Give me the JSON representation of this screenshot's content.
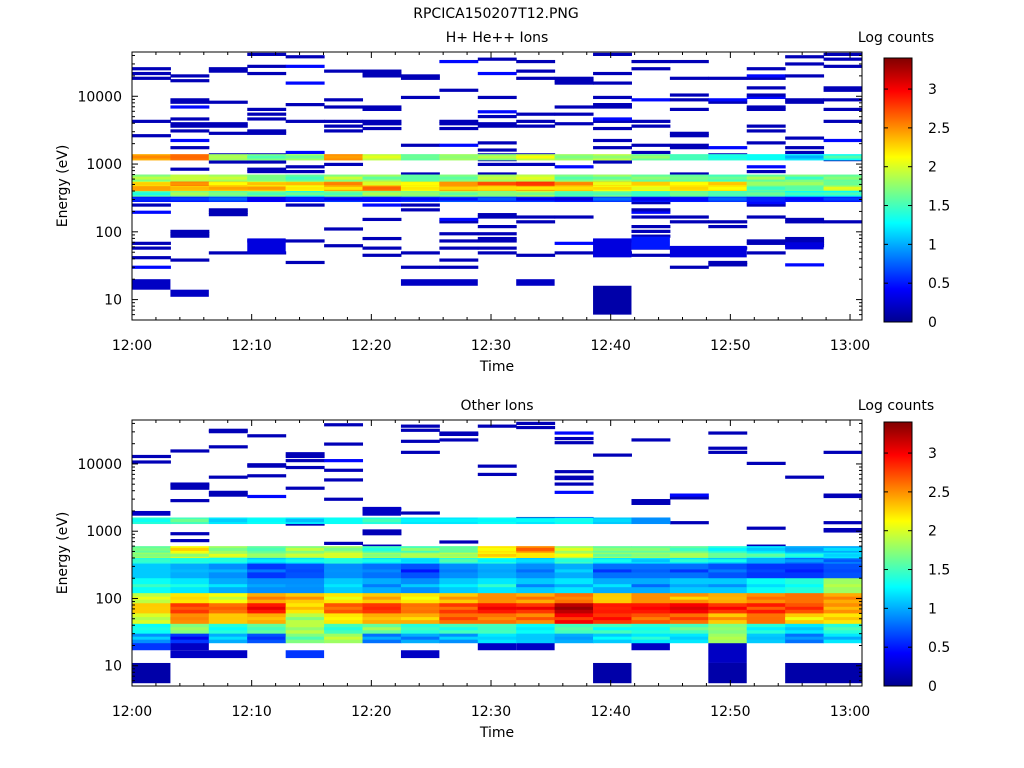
{
  "figure_title": "RPCICA150207T12.PNG",
  "colorbar": {
    "label": "Log counts",
    "range": [
      0,
      3.4
    ],
    "ticks": [
      0,
      0.5,
      1,
      1.5,
      2,
      2.5,
      3
    ],
    "tick_labels": [
      "0",
      "0.5",
      "1",
      "1.5",
      "2",
      "2.5",
      "3"
    ],
    "colormap": "jet"
  },
  "chart_data": [
    {
      "type": "heatmap",
      "title": "H+ He++ Ions",
      "xlabel": "Time",
      "ylabel": "Energy (eV)",
      "yscale": "log",
      "ylim": [
        5,
        45000
      ],
      "x_ticks": [
        "12:00",
        "12:10",
        "12:20",
        "12:30",
        "12:40",
        "12:50",
        "13:00"
      ],
      "y_ticks": [
        10,
        100,
        1000,
        10000
      ],
      "y_tick_labels": [
        "10",
        "100",
        "1000",
        "10000"
      ],
      "time_bins": 19,
      "bands": [
        {
          "elo": 1150,
          "ehi": 1400,
          "values": [
            2.4,
            2.6,
            1.8,
            1.7,
            1.8,
            2.5,
            1.9,
            1.6,
            1.8,
            1.7,
            1.9,
            1.8,
            1.9,
            1.6,
            1.5,
            1.4,
            1.3,
            1.2,
            1.3
          ]
        },
        {
          "elo": 550,
          "ehi": 700,
          "values": [
            1.7,
            1.9,
            1.8,
            1.7,
            1.6,
            1.7,
            1.8,
            1.6,
            1.7,
            1.8,
            1.9,
            1.7,
            1.8,
            1.6,
            1.6,
            1.5,
            1.6,
            1.7,
            1.6
          ]
        },
        {
          "elo": 480,
          "ehi": 550,
          "values": [
            2.1,
            2.7,
            2.3,
            2.1,
            2.2,
            2.4,
            2.2,
            2.2,
            2.5,
            2.6,
            2.9,
            2.4,
            2.3,
            2.3,
            2.2,
            2.2,
            1.8,
            1.7,
            1.7
          ]
        },
        {
          "elo": 400,
          "ehi": 480,
          "values": [
            2.4,
            2.3,
            2.3,
            2.3,
            2.1,
            2.4,
            2.5,
            2.1,
            2.4,
            2.3,
            2.4,
            2.3,
            2.1,
            2.1,
            2.2,
            2.2,
            1.6,
            1.6,
            1.8
          ]
        },
        {
          "elo": 330,
          "ehi": 400,
          "values": [
            1.6,
            1.7,
            1.6,
            1.7,
            1.4,
            1.7,
            1.7,
            1.7,
            1.8,
            1.7,
            1.9,
            1.6,
            1.7,
            1.5,
            1.6,
            1.5,
            1.5,
            1.3,
            1.3
          ]
        },
        {
          "elo": 280,
          "ehi": 330,
          "values": [
            0.5,
            0.5,
            0.6,
            0.4,
            0.5,
            0.6,
            0.5,
            0.6,
            0.7,
            0.6,
            0.6,
            0.5,
            0.6,
            0.5,
            0.5,
            0.6,
            0.5,
            0.5,
            0.5
          ]
        }
      ],
      "sparse_blocks": [
        {
          "t0": 0,
          "t1": 1,
          "elo": 14,
          "ehi": 20,
          "v": 0.2
        },
        {
          "t0": 1,
          "t1": 2,
          "elo": 11,
          "ehi": 14,
          "v": 0.2
        },
        {
          "t0": 7,
          "t1": 9,
          "elo": 16,
          "ehi": 20,
          "v": 0.2
        },
        {
          "t0": 10,
          "t1": 11,
          "elo": 16,
          "ehi": 20,
          "v": 0.2
        },
        {
          "t0": 12,
          "t1": 13,
          "elo": 6,
          "ehi": 16,
          "v": 0.1
        },
        {
          "t0": 3,
          "t1": 4,
          "elo": 48,
          "ehi": 80,
          "v": 0.3
        },
        {
          "t0": 12,
          "t1": 13,
          "elo": 42,
          "ehi": 80,
          "v": 0.3
        },
        {
          "t0": 13,
          "t1": 14,
          "elo": 55,
          "ehi": 85,
          "v": 0.5
        },
        {
          "t0": 14,
          "t1": 16,
          "elo": 42,
          "ehi": 62,
          "v": 0.3
        },
        {
          "t0": 17,
          "t1": 18,
          "elo": 55,
          "ehi": 70,
          "v": 0.3
        }
      ],
      "sparse_lines": {
        "elo": 30,
        "ehi": 45000,
        "value": 0.15,
        "density": 0.17
      }
    },
    {
      "type": "heatmap",
      "title": "Other Ions",
      "xlabel": "Time",
      "ylabel": "Energy (eV)",
      "yscale": "log",
      "ylim": [
        5,
        45000
      ],
      "x_ticks": [
        "12:00",
        "12:10",
        "12:20",
        "12:30",
        "12:40",
        "12:50",
        "13:00"
      ],
      "y_ticks": [
        10,
        100,
        1000,
        10000
      ],
      "y_tick_labels": [
        "10",
        "100",
        "1000",
        "10000"
      ],
      "time_bins": 19,
      "bands": [
        {
          "elo": 1300,
          "ehi": 1600,
          "values": [
            1.4,
            1.5,
            1.2,
            1.3,
            1.2,
            1.3,
            1.4,
            1.2,
            1.2,
            1.3,
            1.2,
            1.3,
            1.1,
            0.9,
            0.0,
            0.0,
            0.0,
            0.0,
            0.0
          ]
        },
        {
          "elo": 480,
          "ehi": 600,
          "values": [
            1.6,
            2.1,
            1.8,
            1.6,
            1.7,
            1.8,
            1.5,
            1.5,
            1.6,
            2.2,
            2.5,
            1.8,
            1.6,
            1.6,
            1.6,
            1.4,
            1.2,
            1.0,
            1.0
          ]
        },
        {
          "elo": 400,
          "ehi": 480,
          "values": [
            1.8,
            2.0,
            1.8,
            1.7,
            1.8,
            2.0,
            1.8,
            1.8,
            1.9,
            2.1,
            2.2,
            1.9,
            1.8,
            1.8,
            1.8,
            1.6,
            1.4,
            1.2,
            1.2
          ]
        },
        {
          "elo": 330,
          "ehi": 400,
          "values": [
            1.4,
            1.4,
            1.3,
            1.1,
            1.2,
            1.4,
            1.2,
            1.2,
            1.4,
            1.4,
            1.1,
            1.5,
            1.2,
            1.2,
            1.2,
            1.1,
            1.0,
            0.8,
            0.9
          ]
        },
        {
          "elo": 200,
          "ehi": 330,
          "values": [
            1.1,
            1.0,
            0.9,
            0.6,
            0.7,
            0.9,
            0.8,
            0.7,
            0.9,
            1.0,
            0.9,
            1.0,
            0.8,
            0.8,
            0.8,
            0.7,
            0.6,
            0.6,
            0.7
          ]
        },
        {
          "elo": 120,
          "ehi": 200,
          "values": [
            1.3,
            1.2,
            1.0,
            0.9,
            0.9,
            1.1,
            1.0,
            0.9,
            1.1,
            1.2,
            1.1,
            1.2,
            1.0,
            1.0,
            1.1,
            1.1,
            1.3,
            1.4,
            1.8
          ]
        },
        {
          "elo": 85,
          "ehi": 120,
          "values": [
            1.9,
            2.2,
            2.1,
            2.4,
            2.3,
            2.2,
            2.3,
            2.2,
            2.3,
            2.5,
            2.4,
            2.6,
            2.3,
            2.5,
            2.5,
            2.4,
            2.5,
            2.6,
            2.4
          ]
        },
        {
          "elo": 60,
          "ehi": 85,
          "values": [
            2.3,
            2.8,
            2.6,
            2.9,
            2.2,
            2.7,
            2.8,
            2.6,
            2.8,
            2.9,
            2.8,
            3.2,
            2.9,
            2.9,
            3.0,
            2.8,
            2.9,
            2.7,
            2.5
          ]
        },
        {
          "elo": 42,
          "ehi": 60,
          "values": [
            2.0,
            2.5,
            2.3,
            2.4,
            1.9,
            2.2,
            2.4,
            2.4,
            2.6,
            2.6,
            2.5,
            3.0,
            2.8,
            2.7,
            2.6,
            2.3,
            2.6,
            2.3,
            2.2
          ]
        },
        {
          "elo": 30,
          "ehi": 42,
          "values": [
            1.3,
            1.7,
            1.4,
            1.6,
            1.9,
            1.5,
            1.6,
            1.4,
            1.5,
            1.5,
            1.3,
            1.5,
            1.5,
            1.4,
            1.5,
            1.7,
            1.4,
            1.2,
            1.4
          ]
        },
        {
          "elo": 22,
          "ehi": 30,
          "values": [
            0.9,
            0.6,
            1.0,
            0.7,
            1.7,
            1.8,
            0.8,
            1.0,
            0.9,
            1.2,
            1.1,
            1.0,
            1.1,
            1.2,
            1.2,
            1.8,
            1.1,
            0.8,
            1.2
          ]
        }
      ],
      "sparse_blocks": [
        {
          "t0": 0,
          "t1": 1,
          "elo": 17,
          "ehi": 22,
          "v": 0.6
        },
        {
          "t0": 1,
          "t1": 2,
          "elo": 17,
          "ehi": 22,
          "v": 0.2
        },
        {
          "t0": 1,
          "t1": 3,
          "elo": 13,
          "ehi": 17,
          "v": 0.2
        },
        {
          "t0": 4,
          "t1": 5,
          "elo": 13,
          "ehi": 17,
          "v": 0.6
        },
        {
          "t0": 7,
          "t1": 8,
          "elo": 13,
          "ehi": 17,
          "v": 0.2
        },
        {
          "t0": 9,
          "t1": 10,
          "elo": 17,
          "ehi": 22,
          "v": 0.2
        },
        {
          "t0": 10,
          "t1": 11,
          "elo": 17,
          "ehi": 22,
          "v": 0.2
        },
        {
          "t0": 13,
          "t1": 14,
          "elo": 17,
          "ehi": 22,
          "v": 0.2
        },
        {
          "t0": 15,
          "t1": 16,
          "elo": 11,
          "ehi": 22,
          "v": 0.2
        },
        {
          "t0": 15,
          "t1": 16,
          "elo": 5.5,
          "ehi": 11,
          "v": 0.1
        },
        {
          "t0": 0,
          "t1": 1,
          "elo": 5.5,
          "ehi": 11,
          "v": 0.1
        },
        {
          "t0": 12,
          "t1": 13,
          "elo": 5.5,
          "ehi": 11,
          "v": 0.1
        },
        {
          "t0": 17,
          "t1": 19,
          "elo": 5.5,
          "ehi": 11,
          "v": 0.1
        },
        {
          "t0": 6,
          "t1": 7,
          "elo": 1700,
          "ehi": 2300,
          "v": 0.2
        },
        {
          "t0": 0,
          "t1": 1,
          "elo": 1700,
          "ehi": 2000,
          "v": 0.2
        }
      ],
      "sparse_lines": {
        "elo": 600,
        "ehi": 42000,
        "value": 0.15,
        "density": 0.05
      }
    }
  ]
}
